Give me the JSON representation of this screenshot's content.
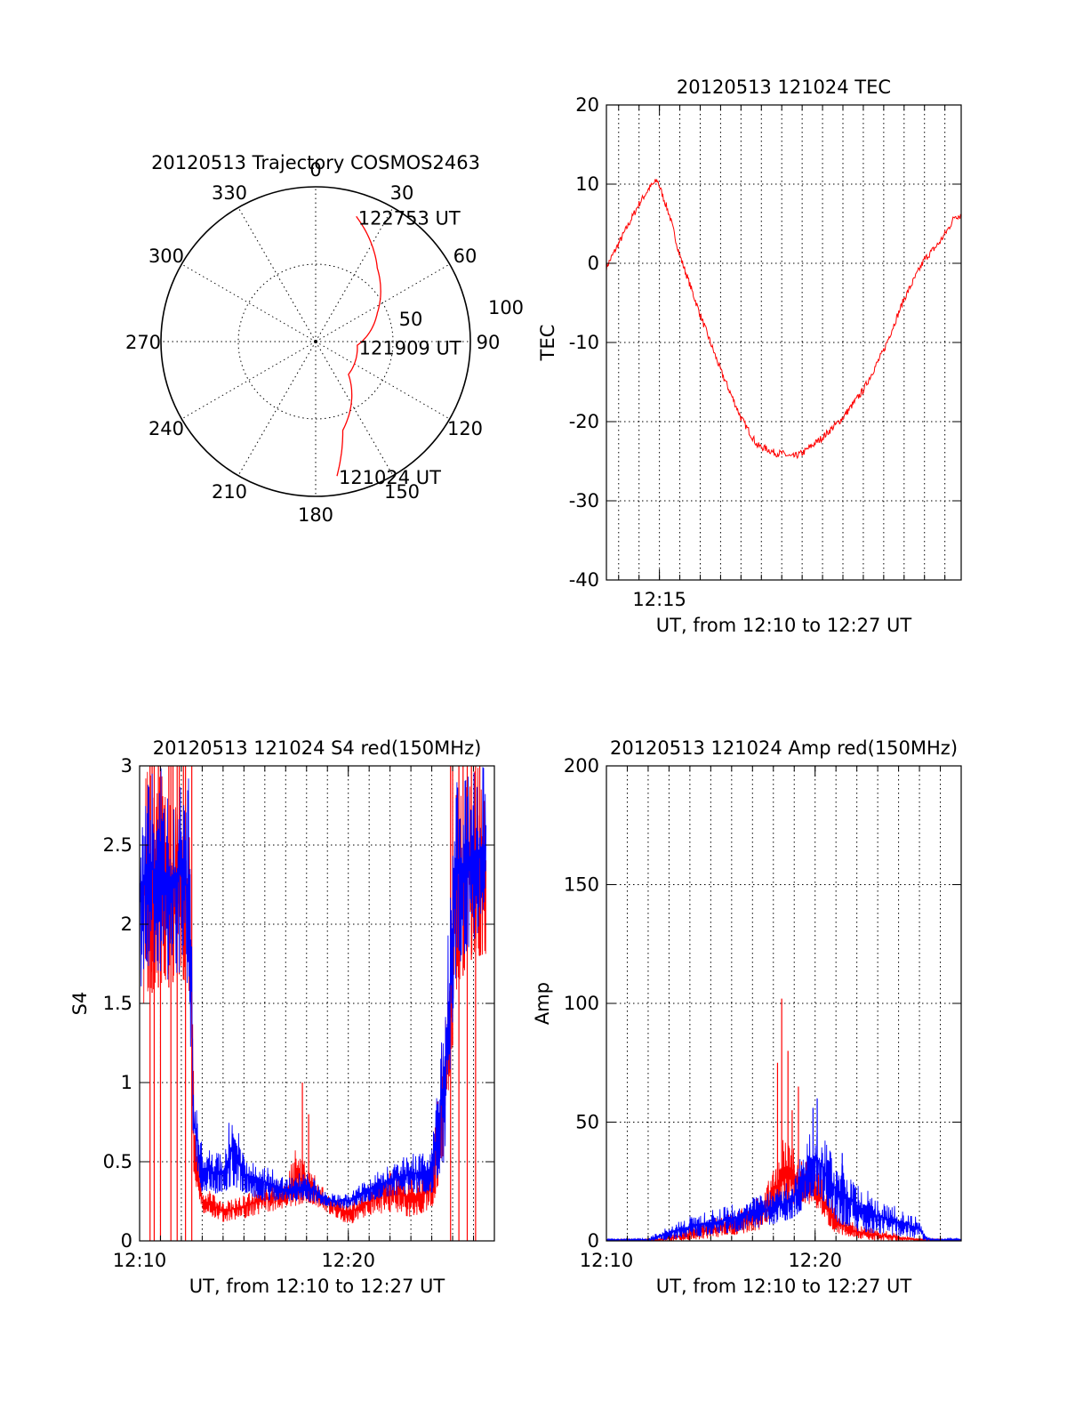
{
  "colors": {
    "red": "#ff0000",
    "blue": "#0000ff",
    "axis": "#000000",
    "grid": "#000000"
  },
  "chart_data": [
    {
      "id": "trajectory",
      "type": "polar",
      "title": "20120513 Trajectory COSMOS2463",
      "angle_labels": [
        "0",
        "30",
        "60",
        "90",
        "120",
        "150",
        "180",
        "210",
        "240",
        "270",
        "300",
        "330"
      ],
      "radial_labels": [
        "50",
        "100"
      ],
      "r_max": 100,
      "track": {
        "color": "red",
        "points": [
          [
            171,
            88
          ],
          [
            163,
            60
          ],
          [
            135,
            30
          ],
          [
            95,
            27
          ],
          [
            65,
            44
          ],
          [
            40,
            62
          ],
          [
            18,
            85
          ]
        ]
      },
      "annotations": [
        {
          "text": "122753 UT",
          "az": 18,
          "r": 85
        },
        {
          "text": "121909 UT",
          "az": 97,
          "r": 27
        },
        {
          "text": "121024 UT",
          "az": 171,
          "r": 88
        }
      ]
    },
    {
      "id": "tec",
      "type": "line",
      "title": "20120513 121024 TEC",
      "xlabel": "UT, from 12:10 to 12:27 UT",
      "ylabel": "TEC",
      "xlim": [
        12.4,
        29.8
      ],
      "ylim": [
        -40,
        20
      ],
      "yticks": [
        20,
        10,
        0,
        -10,
        -20,
        -30,
        -40
      ],
      "xticks": [
        {
          "v": 15,
          "label": "12:15"
        }
      ],
      "series": [
        {
          "color": "red",
          "points": [
            [
              12.4,
              -0.5
            ],
            [
              12.6,
              0.5
            ],
            [
              13.0,
              2.5
            ],
            [
              13.5,
              5.0
            ],
            [
              14.0,
              7.5
            ],
            [
              14.5,
              9.5
            ],
            [
              14.9,
              10.5
            ],
            [
              15.5,
              6.0
            ],
            [
              16.0,
              1.0
            ],
            [
              17.0,
              -6.5
            ],
            [
              18.0,
              -13.5
            ],
            [
              19.0,
              -19.5
            ],
            [
              19.8,
              -23.0
            ],
            [
              20.3,
              -23.5
            ],
            [
              20.7,
              -24.0
            ],
            [
              21.0,
              -24.0
            ],
            [
              21.5,
              -24.5
            ],
            [
              22.0,
              -24.0
            ],
            [
              23.0,
              -22.0
            ],
            [
              24.0,
              -19.5
            ],
            [
              25.0,
              -16.0
            ],
            [
              26.0,
              -11.0
            ],
            [
              27.0,
              -4.5
            ],
            [
              28.0,
              0.5
            ],
            [
              28.7,
              2.5
            ],
            [
              29.2,
              4.5
            ],
            [
              29.5,
              6.0
            ],
            [
              29.8,
              6.0
            ]
          ]
        }
      ]
    },
    {
      "id": "s4",
      "type": "line",
      "title": "20120513 121024 S4 red(150MHz)",
      "xlabel": "UT, from 12:10 to 12:27 UT",
      "ylabel": "S4",
      "xlim": [
        10,
        27
      ],
      "ylim": [
        0,
        3
      ],
      "yticks": [
        {
          "v": 3,
          "label": "3"
        },
        {
          "v": 2.5,
          "label": "2.5"
        },
        {
          "v": 2,
          "label": "2"
        },
        {
          "v": 1.5,
          "label": "1.5"
        },
        {
          "v": 1,
          "label": "1"
        },
        {
          "v": 0.5,
          "label": "0.5"
        },
        {
          "v": 0,
          "label": "0"
        }
      ],
      "xticks": [
        {
          "v": 10,
          "label": "12:10"
        },
        {
          "v": 20,
          "label": "12:20"
        }
      ],
      "series": [
        {
          "color": "red",
          "envelope": [
            [
              10.2,
              1.5,
              3.0
            ],
            [
              10.8,
              1.6,
              3.0
            ],
            [
              11.4,
              1.6,
              3.0
            ],
            [
              12.0,
              1.7,
              3.0
            ],
            [
              12.4,
              1.5,
              3.0
            ],
            [
              12.6,
              0.4,
              0.9
            ],
            [
              13.0,
              0.18,
              0.35
            ],
            [
              14.0,
              0.12,
              0.25
            ],
            [
              15.0,
              0.14,
              0.3
            ],
            [
              16.0,
              0.18,
              0.35
            ],
            [
              17.0,
              0.2,
              0.4
            ],
            [
              17.5,
              0.22,
              0.6
            ],
            [
              18.0,
              0.25,
              0.5
            ],
            [
              19.0,
              0.18,
              0.3
            ],
            [
              20.0,
              0.1,
              0.25
            ],
            [
              21.0,
              0.16,
              0.35
            ],
            [
              22.0,
              0.18,
              0.45
            ],
            [
              23.0,
              0.15,
              0.4
            ],
            [
              24.0,
              0.2,
              0.45
            ],
            [
              24.6,
              0.5,
              1.5
            ],
            [
              25.2,
              1.6,
              3.0
            ],
            [
              26.0,
              1.8,
              3.0
            ],
            [
              26.6,
              1.8,
              3.0
            ]
          ],
          "spikes": [
            [
              10.6,
              3.0
            ],
            [
              10.9,
              3.0
            ],
            [
              11.4,
              3.0
            ],
            [
              11.6,
              3.0
            ],
            [
              11.9,
              3.0
            ],
            [
              12.1,
              3.0
            ],
            [
              17.8,
              1.0
            ],
            [
              18.1,
              0.8
            ],
            [
              25.0,
              3.0
            ],
            [
              25.5,
              3.0
            ],
            [
              25.9,
              3.0
            ],
            [
              26.3,
              3.0
            ]
          ],
          "drops": [
            10.5,
            10.7,
            11.0,
            11.5,
            11.8,
            12.2,
            12.5,
            24.9,
            25.3,
            25.7,
            26.1
          ]
        },
        {
          "color": "blue",
          "envelope": [
            [
              10.0,
              1.5,
              3.0
            ],
            [
              10.5,
              1.7,
              3.0
            ],
            [
              11.0,
              1.7,
              3.0
            ],
            [
              11.5,
              1.6,
              3.0
            ],
            [
              12.0,
              1.7,
              3.0
            ],
            [
              12.4,
              1.4,
              3.0
            ],
            [
              12.6,
              0.5,
              1.0
            ],
            [
              13.0,
              0.3,
              0.6
            ],
            [
              14.0,
              0.3,
              0.55
            ],
            [
              14.5,
              0.35,
              0.9
            ],
            [
              15.0,
              0.3,
              0.55
            ],
            [
              16.0,
              0.25,
              0.5
            ],
            [
              17.0,
              0.25,
              0.4
            ],
            [
              18.0,
              0.25,
              0.45
            ],
            [
              19.0,
              0.22,
              0.3
            ],
            [
              20.0,
              0.2,
              0.3
            ],
            [
              21.0,
              0.25,
              0.4
            ],
            [
              22.0,
              0.28,
              0.5
            ],
            [
              23.0,
              0.3,
              0.55
            ],
            [
              24.0,
              0.3,
              0.6
            ],
            [
              24.6,
              0.5,
              1.5
            ],
            [
              25.2,
              1.7,
              3.0
            ],
            [
              26.0,
              1.9,
              3.0
            ],
            [
              26.6,
              2.0,
              3.0
            ]
          ]
        }
      ]
    },
    {
      "id": "amp",
      "type": "line",
      "title": "20120513 121024 Amp red(150MHz)",
      "xlabel": "UT, from 12:10 to 12:27 UT",
      "ylabel": "Amp",
      "xlim": [
        10,
        27
      ],
      "ylim": [
        0,
        200
      ],
      "yticks": [
        {
          "v": 200,
          "label": "200"
        },
        {
          "v": 150,
          "label": "150"
        },
        {
          "v": 100,
          "label": "100"
        },
        {
          "v": 50,
          "label": "50"
        },
        {
          "v": 0,
          "label": "0"
        }
      ],
      "xticks": [
        {
          "v": 10,
          "label": "12:10"
        },
        {
          "v": 20,
          "label": "12:20"
        }
      ],
      "series": [
        {
          "color": "red",
          "envelope": [
            [
              10.0,
              0,
              0.5
            ],
            [
              12.5,
              0,
              1
            ],
            [
              13.5,
              0,
              4
            ],
            [
              15.0,
              1,
              9
            ],
            [
              16.5,
              3,
              14
            ],
            [
              17.5,
              5,
              20
            ],
            [
              18.0,
              10,
              30
            ],
            [
              18.5,
              18,
              45
            ],
            [
              19.0,
              15,
              40
            ],
            [
              19.5,
              16,
              36
            ],
            [
              20.0,
              14,
              32
            ],
            [
              20.5,
              8,
              24
            ],
            [
              21.0,
              3,
              13
            ],
            [
              22.0,
              1,
              7
            ],
            [
              23.0,
              0,
              5
            ],
            [
              24.0,
              0,
              3
            ],
            [
              25.0,
              0,
              1
            ],
            [
              27.0,
              0,
              0.5
            ]
          ],
          "spikes": [
            [
              18.4,
              102
            ],
            [
              18.2,
              75
            ],
            [
              18.7,
              80
            ],
            [
              19.2,
              65
            ],
            [
              18.9,
              55
            ]
          ]
        },
        {
          "color": "blue",
          "envelope": [
            [
              10.0,
              0,
              1
            ],
            [
              12.0,
              0,
              1
            ],
            [
              12.5,
              0,
              4
            ],
            [
              13.5,
              1,
              9
            ],
            [
              14.5,
              2,
              12
            ],
            [
              15.5,
              3,
              14
            ],
            [
              16.5,
              4,
              17
            ],
            [
              17.5,
              6,
              20
            ],
            [
              18.5,
              8,
              24
            ],
            [
              19.0,
              10,
              28
            ],
            [
              19.5,
              14,
              40
            ],
            [
              20.0,
              20,
              52
            ],
            [
              20.5,
              16,
              42
            ],
            [
              21.0,
              8,
              36
            ],
            [
              21.5,
              6,
              32
            ],
            [
              22.0,
              4,
              26
            ],
            [
              23.0,
              3,
              18
            ],
            [
              24.0,
              2,
              14
            ],
            [
              25.0,
              1,
              10
            ],
            [
              25.3,
              0,
              3
            ],
            [
              25.6,
              0,
              1
            ],
            [
              27.0,
              0,
              1
            ]
          ],
          "spikes": [
            [
              20.1,
              60
            ],
            [
              19.9,
              56
            ],
            [
              21.3,
              37
            ]
          ]
        }
      ]
    }
  ]
}
